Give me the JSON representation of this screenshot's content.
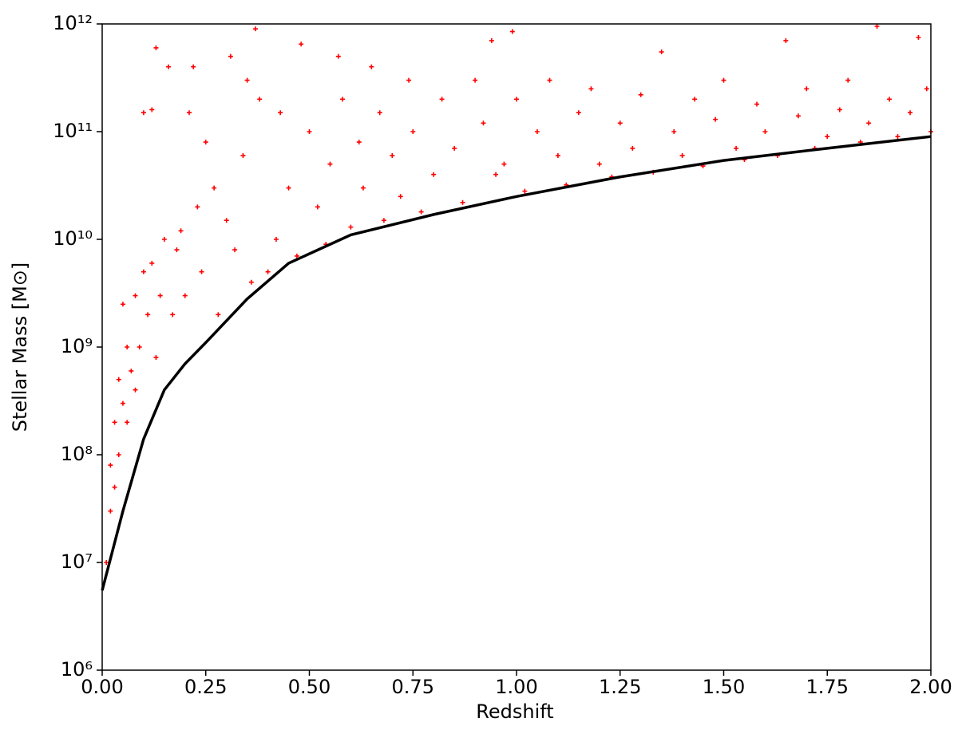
{
  "chart_data": {
    "type": "scatter",
    "xlabel": "Redshift",
    "ylabel": "Stellar Mass [M⊙]",
    "xlim": [
      0,
      2
    ],
    "ylim": [
      1000000,
      1000000000000
    ],
    "yscale": "log",
    "xticks": [
      {
        "value": 0,
        "label": "0.00"
      },
      {
        "value": 0.25,
        "label": "0.25"
      },
      {
        "value": 0.5,
        "label": "0.50"
      },
      {
        "value": 0.75,
        "label": "0.75"
      },
      {
        "value": 1,
        "label": "1.00"
      },
      {
        "value": 1.25,
        "label": "1.25"
      },
      {
        "value": 1.5,
        "label": "1.50"
      },
      {
        "value": 1.75,
        "label": "1.75"
      },
      {
        "value": 2,
        "label": "2.00"
      }
    ],
    "yticks": [
      {
        "value": 1000000,
        "label": "10⁶"
      },
      {
        "value": 10000000,
        "label": "10⁷"
      },
      {
        "value": 100000000,
        "label": "10⁸"
      },
      {
        "value": 1000000000,
        "label": "10⁹"
      },
      {
        "value": 10000000000,
        "label": "10¹⁰"
      },
      {
        "value": 100000000000,
        "label": "10¹¹"
      },
      {
        "value": 1000000000000,
        "label": "10¹²"
      }
    ],
    "series": [
      {
        "type": "scatter",
        "color": "#ff0000",
        "marker": "+",
        "x": [
          0.01,
          0.02,
          0.02,
          0.03,
          0.03,
          0.04,
          0.04,
          0.05,
          0.05,
          0.06,
          0.06,
          0.07,
          0.08,
          0.08,
          0.09,
          0.1,
          0.1,
          0.11,
          0.12,
          0.12,
          0.13,
          0.13,
          0.14,
          0.15,
          0.16,
          0.17,
          0.18,
          0.19,
          0.2,
          0.21,
          0.22,
          0.23,
          0.24,
          0.25,
          0.27,
          0.28,
          0.3,
          0.31,
          0.32,
          0.34,
          0.35,
          0.36,
          0.37,
          0.38,
          0.4,
          0.42,
          0.43,
          0.45,
          0.47,
          0.48,
          0.5,
          0.52,
          0.54,
          0.55,
          0.57,
          0.58,
          0.6,
          0.62,
          0.63,
          0.65,
          0.67,
          0.68,
          0.7,
          0.72,
          0.74,
          0.75,
          0.77,
          0.8,
          0.82,
          0.85,
          0.87,
          0.9,
          0.92,
          0.94,
          0.95,
          0.97,
          0.99,
          1.0,
          1.02,
          1.05,
          1.08,
          1.1,
          1.12,
          1.15,
          1.18,
          1.2,
          1.23,
          1.25,
          1.28,
          1.3,
          1.33,
          1.35,
          1.38,
          1.4,
          1.43,
          1.45,
          1.48,
          1.5,
          1.53,
          1.55,
          1.58,
          1.6,
          1.63,
          1.65,
          1.68,
          1.7,
          1.72,
          1.75,
          1.78,
          1.8,
          1.83,
          1.85,
          1.87,
          1.9,
          1.92,
          1.95,
          1.97,
          2.0,
          1.99
        ],
        "values": [
          10000000.0,
          30000000.0,
          80000000.0,
          50000000.0,
          200000000.0,
          100000000.0,
          500000000.0,
          2500000000.0,
          300000000.0,
          1000000000.0,
          200000000.0,
          600000000.0,
          3000000000.0,
          400000000.0,
          1000000000.0,
          150000000000.0,
          5000000000.0,
          2000000000.0,
          160000000000.0,
          6000000000.0,
          600000000000.0,
          800000000.0,
          3000000000.0,
          10000000000.0,
          400000000000.0,
          2000000000.0,
          8000000000.0,
          12000000000.0,
          3000000000.0,
          150000000000.0,
          400000000000.0,
          20000000000.0,
          5000000000.0,
          80000000000.0,
          30000000000.0,
          2000000000.0,
          15000000000.0,
          500000000000.0,
          8000000000.0,
          60000000000.0,
          300000000000.0,
          4000000000.0,
          900000000000.0,
          200000000000.0,
          5000000000.0,
          10000000000.0,
          150000000000.0,
          30000000000.0,
          7000000000.0,
          650000000000.0,
          100000000000.0,
          20000000000.0,
          9000000000.0,
          50000000000.0,
          500000000000.0,
          200000000000.0,
          13000000000.0,
          80000000000.0,
          30000000000.0,
          400000000000.0,
          150000000000.0,
          15000000000.0,
          60000000000.0,
          25000000000.0,
          300000000000.0,
          100000000000.0,
          18000000000.0,
          40000000000.0,
          200000000000.0,
          70000000000.0,
          22000000000.0,
          300000000000.0,
          120000000000.0,
          700000000000.0,
          40000000000.0,
          50000000000.0,
          850000000000.0,
          200000000000.0,
          28000000000.0,
          100000000000.0,
          300000000000.0,
          60000000000.0,
          32000000000.0,
          150000000000.0,
          250000000000.0,
          50000000000.0,
          38000000000.0,
          120000000000.0,
          70000000000.0,
          220000000000.0,
          42000000000.0,
          550000000000.0,
          100000000000.0,
          60000000000.0,
          200000000000.0,
          48000000000.0,
          130000000000.0,
          300000000000.0,
          70000000000.0,
          55000000000.0,
          180000000000.0,
          100000000000.0,
          60000000000.0,
          700000000000.0,
          140000000000.0,
          250000000000.0,
          70000000000.0,
          90000000000.0,
          160000000000.0,
          300000000000.0,
          80000000000.0,
          120000000000.0,
          950000000000.0,
          200000000000.0,
          90000000000.0,
          150000000000.0,
          750000000000.0,
          100000000000.0,
          250000000000.0
        ]
      },
      {
        "type": "line",
        "color": "#000000",
        "x": [
          0,
          0.05,
          0.1,
          0.15,
          0.2,
          0.25,
          0.35,
          0.45,
          0.6,
          0.8,
          1.0,
          1.25,
          1.5,
          1.75,
          2.0
        ],
        "values": [
          5500000.0,
          30000000.0,
          140000000.0,
          400000000.0,
          700000000.0,
          1100000000.0,
          2800000000.0,
          6000000000.0,
          11000000000.0,
          17000000000.0,
          25000000000.0,
          38000000000.0,
          54000000000.0,
          70000000000.0,
          90000000000.0
        ]
      }
    ]
  }
}
